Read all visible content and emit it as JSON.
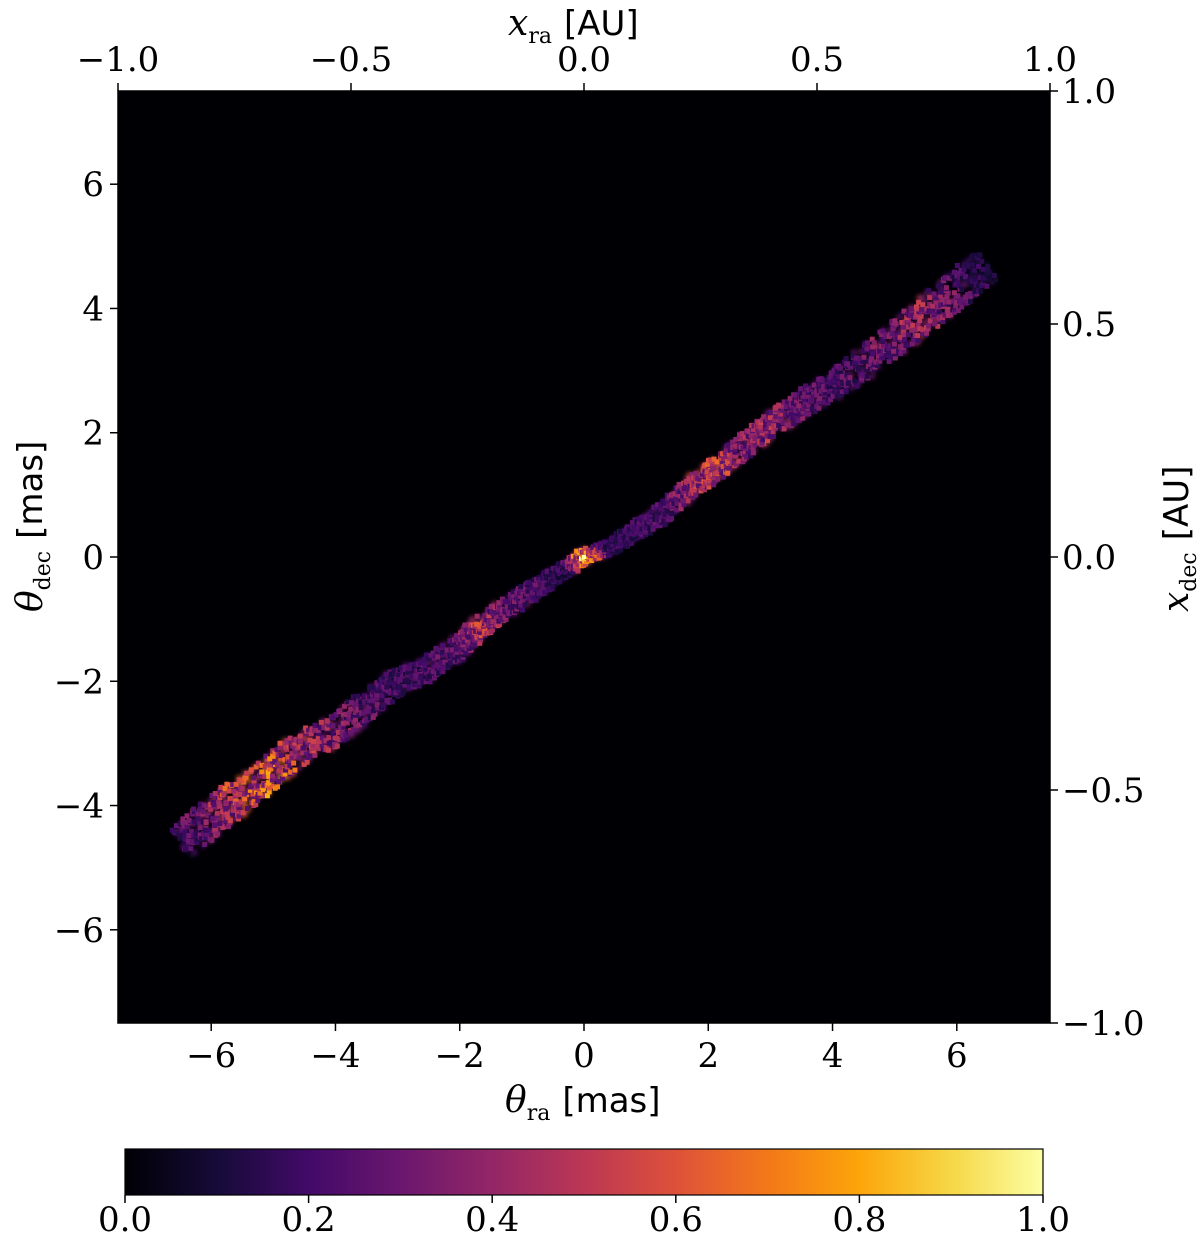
{
  "chart_data": {
    "type": "heatmap",
    "colormap": "inferno",
    "background_color": "#000004",
    "x_bottom": {
      "range": [
        -7.5,
        7.5
      ],
      "ticks": [
        -6,
        -4,
        -2,
        0,
        2,
        4,
        6
      ],
      "tick_labels": [
        "−6",
        "−4",
        "−2",
        "0",
        "2",
        "4",
        "6"
      ],
      "label_symbol": "θ",
      "label_sub": "ra",
      "label_unit": "[mas]"
    },
    "y_left": {
      "range": [
        -7.5,
        7.5
      ],
      "ticks": [
        -6,
        -4,
        -2,
        0,
        2,
        4,
        6
      ],
      "tick_labels": [
        "−6",
        "−4",
        "−2",
        "0",
        "2",
        "4",
        "6"
      ],
      "label_symbol": "θ",
      "label_sub": "dec",
      "label_unit": "[mas]"
    },
    "x_top": {
      "range": [
        -1.0,
        1.0
      ],
      "ticks": [
        -1.0,
        -0.5,
        0.0,
        0.5,
        1.0
      ],
      "tick_labels": [
        "−1.0",
        "−0.5",
        "0.0",
        "0.5",
        "1.0"
      ],
      "label_symbol": "x",
      "label_sub": "ra",
      "label_unit": "[AU]"
    },
    "y_right": {
      "range": [
        -1.0,
        1.0
      ],
      "ticks": [
        -1.0,
        -0.5,
        0.0,
        0.5,
        1.0
      ],
      "tick_labels": [
        "−1.0",
        "−0.5",
        "0.0",
        "0.5",
        "1.0"
      ],
      "label_symbol": "x",
      "label_sub": "dec",
      "label_unit": "[AU]"
    },
    "colorbar": {
      "range": [
        0.0,
        1.0
      ],
      "ticks": [
        0.0,
        0.2,
        0.4,
        0.6,
        0.8,
        1.0
      ],
      "tick_labels": [
        "0.0",
        "0.2",
        "0.4",
        "0.6",
        "0.8",
        "1.0"
      ],
      "orientation": "horizontal",
      "placement": "bottom"
    },
    "trail": {
      "description_points": [
        {
          "x": -6.5,
          "y": -4.6,
          "intensity": 0.25
        },
        {
          "x": -6.0,
          "y": -4.2,
          "intensity": 0.45
        },
        {
          "x": -5.6,
          "y": -3.9,
          "intensity": 0.65
        },
        {
          "x": -5.1,
          "y": -3.5,
          "intensity": 0.8
        },
        {
          "x": -4.6,
          "y": -3.1,
          "intensity": 0.55
        },
        {
          "x": -4.0,
          "y": -2.8,
          "intensity": 0.45
        },
        {
          "x": -3.5,
          "y": -2.4,
          "intensity": 0.35
        },
        {
          "x": -3.0,
          "y": -2.0,
          "intensity": 0.25
        },
        {
          "x": -2.5,
          "y": -1.8,
          "intensity": 0.3
        },
        {
          "x": -2.0,
          "y": -1.45,
          "intensity": 0.35
        },
        {
          "x": -1.7,
          "y": -1.15,
          "intensity": 0.6
        },
        {
          "x": -1.2,
          "y": -0.8,
          "intensity": 0.35
        },
        {
          "x": -0.7,
          "y": -0.45,
          "intensity": 0.3
        },
        {
          "x": -0.3,
          "y": -0.2,
          "intensity": 0.2
        },
        {
          "x": 0.0,
          "y": 0.0,
          "intensity": 1.0
        },
        {
          "x": 0.4,
          "y": 0.15,
          "intensity": 0.2
        },
        {
          "x": 0.8,
          "y": 0.4,
          "intensity": 0.25
        },
        {
          "x": 1.2,
          "y": 0.65,
          "intensity": 0.3
        },
        {
          "x": 1.7,
          "y": 1.1,
          "intensity": 0.5
        },
        {
          "x": 2.1,
          "y": 1.4,
          "intensity": 0.65
        },
        {
          "x": 2.6,
          "y": 1.8,
          "intensity": 0.45
        },
        {
          "x": 3.0,
          "y": 2.1,
          "intensity": 0.55
        },
        {
          "x": 3.5,
          "y": 2.45,
          "intensity": 0.35
        },
        {
          "x": 4.0,
          "y": 2.75,
          "intensity": 0.3
        },
        {
          "x": 4.5,
          "y": 3.1,
          "intensity": 0.35
        },
        {
          "x": 5.0,
          "y": 3.5,
          "intensity": 0.45
        },
        {
          "x": 5.5,
          "y": 3.9,
          "intensity": 0.5
        },
        {
          "x": 6.0,
          "y": 4.3,
          "intensity": 0.35
        },
        {
          "x": 6.5,
          "y": 4.7,
          "intensity": 0.15
        }
      ]
    }
  }
}
